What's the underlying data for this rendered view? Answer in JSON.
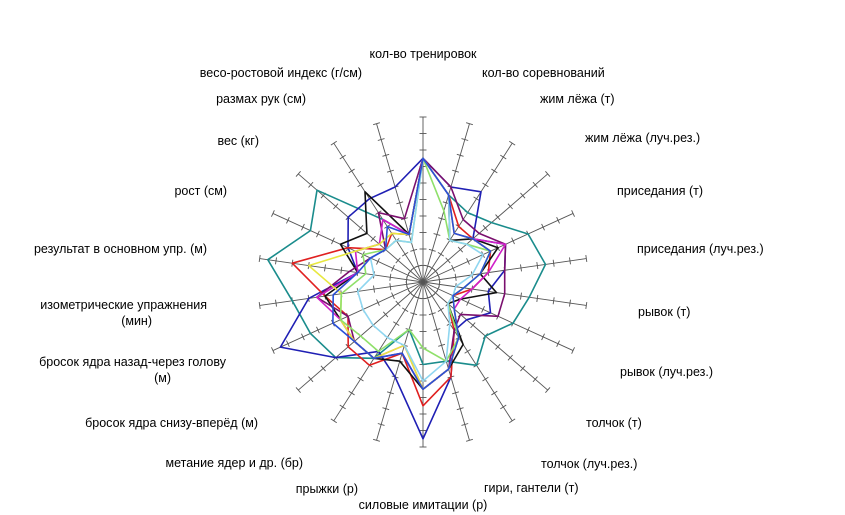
{
  "chart_data": {
    "type": "radar",
    "max": 10,
    "axes": [
      "кол-во тренировок",
      "кол-во соревнований",
      "жим лёжа (т)",
      "жим лёжа (луч.рез.)",
      "приседания (т)",
      "приседания (луч.рез.)",
      "рывок (т)",
      "рывок (луч.рез.)",
      "толчок (т)",
      "толчок (луч.рез.)",
      "гири, гантели (т)",
      "силовые имитации (р)",
      "прыжки (р)",
      "метание ядер и др. (бр)",
      "бросок ядра снизу-вперёд (м)",
      [
        "бросок ядра назад-через голову",
        "(м)"
      ],
      [
        "изометрические упражнения",
        "(мин)"
      ],
      "результат в основном упр. (м)",
      "рост (см)",
      "вес (кг)",
      "размах рук (см)",
      "весо-ростовой индекс (г/см)"
    ],
    "series": [
      {
        "color": "#1a8c8c",
        "values": [
          7.5,
          5.5,
          5,
          5.5,
          7,
          7.5,
          6.5,
          6,
          5,
          6,
          5,
          5,
          3,
          5.5,
          7,
          7.5,
          8,
          9.5,
          7.5,
          8.5,
          4.5,
          3
        ]
      },
      {
        "color": "#1f1fb4",
        "values": [
          7.5,
          6,
          6.5,
          4,
          5.5,
          5,
          4,
          4.5,
          3.5,
          3.5,
          6,
          9.5,
          6,
          5,
          7,
          9.5,
          7,
          4,
          5,
          6,
          6,
          6
        ]
      },
      {
        "color": "#e02020",
        "values": [
          7.5,
          5.5,
          4,
          4,
          4.5,
          4,
          3,
          2,
          2,
          3.5,
          6,
          7.5,
          4.5,
          6,
          6,
          5,
          6,
          8,
          5,
          3,
          3.5,
          3
        ]
      },
      {
        "color": "#111111",
        "values": [
          7.5,
          5.5,
          3,
          4,
          5,
          3.5,
          4.5,
          2.5,
          2,
          4.5,
          5.5,
          6.5,
          5,
          5.5,
          5.5,
          5.5,
          6,
          4,
          5.5,
          4.5,
          6.5,
          3
        ]
      },
      {
        "color": "#7a0f6e",
        "values": [
          7.5,
          6,
          4.5,
          4.5,
          5.5,
          5,
          5,
          5,
          3,
          3.5,
          5.5,
          6.5,
          4.5,
          5.5,
          5.5,
          5,
          6.5,
          4.5,
          3.5,
          3,
          5,
          4
        ]
      },
      {
        "color": "#d020c8",
        "values": [
          7.5,
          5.5,
          3.5,
          4,
          5.5,
          4,
          3,
          2.5,
          2.5,
          4,
          5.5,
          6.5,
          4,
          5.5,
          5.5,
          5.5,
          6.5,
          4,
          4.5,
          3.5,
          4.5,
          3
        ]
      },
      {
        "color": "#e8e840",
        "values": [
          7.5,
          5.5,
          3.5,
          4,
          4.5,
          3.5,
          2.5,
          2,
          2.5,
          4,
          5.5,
          6.5,
          4,
          5.5,
          5.5,
          5.5,
          5,
          7,
          4.5,
          3.5,
          3.5,
          3
        ]
      },
      {
        "color": "#8fe06a",
        "values": [
          7.5,
          4.5,
          3,
          3.5,
          4.5,
          3.5,
          2.5,
          2,
          2,
          4,
          5,
          4,
          3,
          5,
          5,
          5.5,
          5,
          3.5,
          4,
          3,
          3,
          2.5
        ]
      },
      {
        "color": "#8fd6f0",
        "values": [
          7.5,
          5.5,
          3,
          3.5,
          4,
          3,
          2,
          2,
          2,
          3,
          5,
          6,
          4,
          4,
          4,
          4,
          4,
          3,
          3.5,
          3,
          3,
          2.5
        ]
      },
      {
        "color": "#2a4fd6",
        "values": [
          7.5,
          5.5,
          3.5,
          4,
          4.5,
          3.5,
          2.5,
          2,
          2.5,
          4,
          5.5,
          6.5,
          4.5,
          5.5,
          5.5,
          6,
          5.5,
          4,
          3.5,
          3,
          4,
          3
        ]
      }
    ]
  }
}
